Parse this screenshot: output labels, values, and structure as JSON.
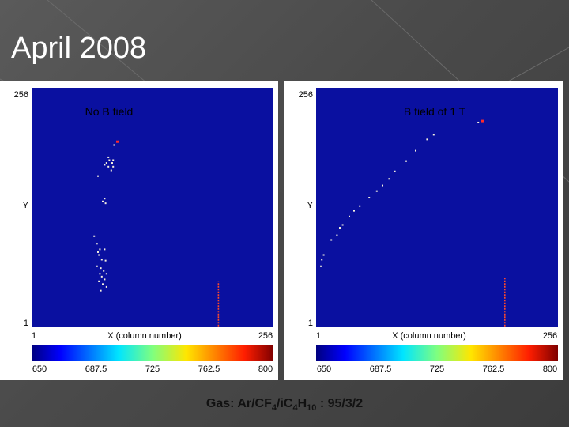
{
  "slide": {
    "title": "April 2008"
  },
  "panels": [
    {
      "id": "left",
      "title": "No B field",
      "y_axis_label": "Y",
      "x_axis_label": "X (column number)",
      "y_ticks": [
        "256",
        "1"
      ],
      "x_ticks": [
        "1",
        "256"
      ],
      "colorbar_ticks": [
        "650",
        "687.5",
        "725",
        "762.5",
        "800"
      ],
      "hits": [
        [
          91,
          199
        ],
        [
          88,
          195
        ],
        [
          82,
          182
        ],
        [
          83,
          179
        ],
        [
          87,
          179
        ],
        [
          86,
          176
        ],
        [
          80,
          176
        ],
        [
          78,
          174
        ],
        [
          87,
          172
        ],
        [
          82,
          172
        ],
        [
          85,
          168
        ],
        [
          71,
          162
        ],
        [
          78,
          138
        ],
        [
          76,
          135
        ],
        [
          79,
          133
        ],
        [
          67,
          98
        ],
        [
          70,
          90
        ],
        [
          73,
          84
        ],
        [
          71,
          81
        ],
        [
          78,
          84
        ],
        [
          72,
          78
        ],
        [
          75,
          73
        ],
        [
          79,
          72
        ],
        [
          70,
          66
        ],
        [
          74,
          64
        ],
        [
          77,
          61
        ],
        [
          80,
          58
        ],
        [
          73,
          58
        ],
        [
          75,
          55
        ],
        [
          78,
          52
        ],
        [
          72,
          50
        ],
        [
          76,
          47
        ],
        [
          80,
          44
        ],
        [
          74,
          40
        ]
      ],
      "lines": [
        {
          "x": 198,
          "y0": 2,
          "y1": 50
        }
      ]
    },
    {
      "id": "right",
      "title": "B field of 1 T",
      "y_axis_label": "Y",
      "x_axis_label": "X (column number)",
      "y_ticks": [
        "256",
        "1"
      ],
      "x_ticks": [
        "1",
        "256"
      ],
      "colorbar_ticks": [
        "650",
        "687.5",
        "725",
        "762.5",
        "800"
      ],
      "hits": [
        [
          176,
          221
        ],
        [
          172,
          219
        ],
        [
          125,
          206
        ],
        [
          118,
          201
        ],
        [
          106,
          189
        ],
        [
          96,
          178
        ],
        [
          84,
          167
        ],
        [
          78,
          159
        ],
        [
          71,
          152
        ],
        [
          65,
          146
        ],
        [
          57,
          139
        ],
        [
          47,
          130
        ],
        [
          41,
          125
        ],
        [
          36,
          119
        ],
        [
          29,
          110
        ],
        [
          26,
          107
        ],
        [
          23,
          99
        ],
        [
          17,
          94
        ],
        [
          9,
          78
        ],
        [
          7,
          73
        ],
        [
          6,
          66
        ]
      ],
      "lines": [
        {
          "x": 200,
          "y0": 2,
          "y1": 55
        }
      ]
    }
  ],
  "caption": {
    "prefix": "Gas: Ar/CF",
    "sub1": "4",
    "mid": "/iC",
    "sub2": "4",
    "h": "H",
    "sub3": "10",
    "suffix": " : 95/3/2"
  },
  "colors": {
    "plot_bg": "#0a10a0",
    "hit": "#f5f0e0",
    "hot_hit": "#ff2a2a"
  }
}
